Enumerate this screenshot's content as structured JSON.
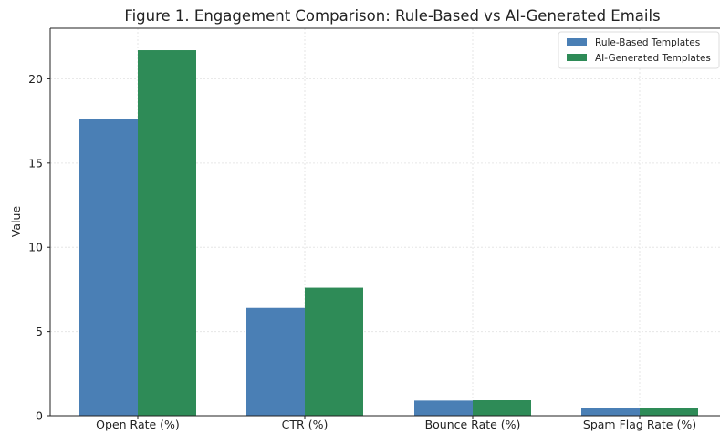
{
  "chart_data": {
    "type": "bar",
    "title": "Figure 1. Engagement Comparison: Rule-Based vs AI-Generated Emails",
    "xlabel": "",
    "ylabel": "Value",
    "categories": [
      "Open Rate (%)",
      "CTR (%)",
      "Bounce Rate (%)",
      "Spam Flag Rate (%)"
    ],
    "series": [
      {
        "name": "Rule-Based Templates",
        "color": "#4a7fb5",
        "values": [
          17.6,
          6.4,
          0.9,
          0.45
        ]
      },
      {
        "name": "AI-Generated Templates",
        "color": "#2e8b57",
        "values": [
          21.7,
          7.6,
          0.92,
          0.47
        ]
      }
    ],
    "ylim": [
      0,
      23
    ],
    "yticks": [
      0,
      5,
      10,
      15,
      20
    ],
    "grid": true,
    "legend": "top-right"
  }
}
